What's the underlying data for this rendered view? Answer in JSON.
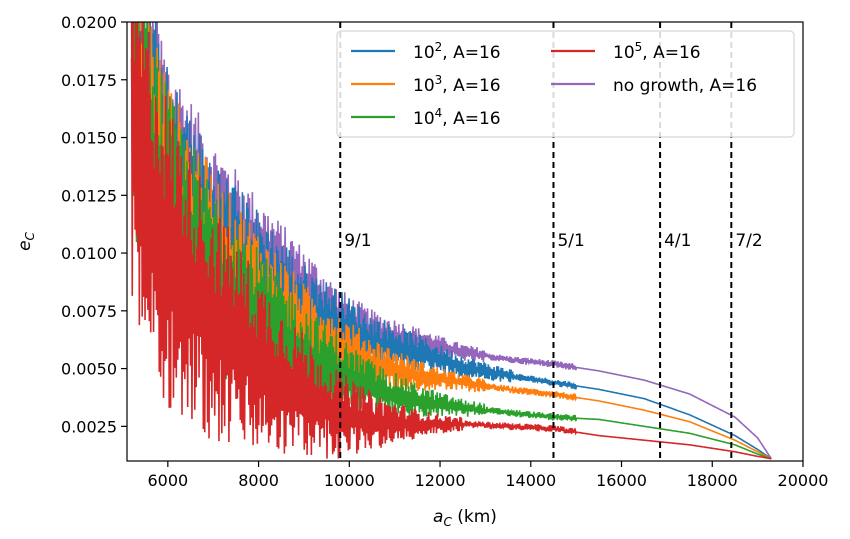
{
  "chart_data": {
    "type": "line",
    "xlabel": "a_C (km)",
    "ylabel": "e_C",
    "xlim": [
      5100,
      20000
    ],
    "ylim": [
      0.001,
      0.02
    ],
    "xticks": [
      6000,
      8000,
      10000,
      12000,
      14000,
      16000,
      18000,
      20000
    ],
    "yticks": [
      0.0025,
      0.005,
      0.0075,
      0.01,
      0.0125,
      0.015,
      0.0175,
      0.02
    ],
    "ytick_labels": [
      "0.0025",
      "0.0050",
      "0.0075",
      "0.0100",
      "0.0125",
      "0.0150",
      "0.0175",
      "0.0200"
    ],
    "grid": false,
    "legend_position": "top-right",
    "series": [
      {
        "name": "10^2, A=16",
        "label_base": "10",
        "label_exp": "2",
        "label_rest": ", A=16",
        "color": "#1f77b4",
        "x": [
          5200,
          5600,
          6000,
          7000,
          8000,
          9000,
          9800,
          10500,
          11500,
          12500,
          13500,
          14500,
          15500,
          16500,
          17500,
          18500,
          19000,
          19300
        ],
        "y": [
          0.0195,
          0.0168,
          0.0138,
          0.0108,
          0.0092,
          0.0075,
          0.0068,
          0.0061,
          0.0057,
          0.0051,
          0.0047,
          0.0044,
          0.0041,
          0.0037,
          0.003,
          0.0021,
          0.0015,
          0.0011
        ]
      },
      {
        "name": "10^3, A=16",
        "label_base": "10",
        "label_exp": "3",
        "label_rest": ", A=16",
        "color": "#ff7f0e",
        "x": [
          5200,
          5600,
          6000,
          7000,
          8000,
          9000,
          9800,
          10500,
          11500,
          12500,
          13500,
          14500,
          15500,
          16500,
          17500,
          18500,
          19000,
          19300
        ],
        "y": [
          0.0185,
          0.0158,
          0.0128,
          0.0098,
          0.0082,
          0.0066,
          0.0058,
          0.0052,
          0.0047,
          0.0044,
          0.0041,
          0.0039,
          0.0036,
          0.0032,
          0.0027,
          0.0019,
          0.0014,
          0.0011
        ]
      },
      {
        "name": "10^4, A=16",
        "label_base": "10",
        "label_exp": "4",
        "label_rest": ", A=16",
        "color": "#2ca02c",
        "x": [
          5200,
          5600,
          6000,
          7000,
          8000,
          9000,
          9800,
          10500,
          11500,
          12500,
          13500,
          14500,
          15500,
          16500,
          17500,
          18500,
          19000,
          19300
        ],
        "y": [
          0.017,
          0.0145,
          0.0118,
          0.0088,
          0.007,
          0.0055,
          0.0047,
          0.0041,
          0.0036,
          0.0033,
          0.0031,
          0.0029,
          0.0028,
          0.0025,
          0.0022,
          0.0017,
          0.0013,
          0.0011
        ]
      },
      {
        "name": "10^5, A=16",
        "label_base": "10",
        "label_exp": "5",
        "label_rest": ", A=16",
        "color": "#d62728",
        "x": [
          5200,
          5600,
          6000,
          7000,
          8000,
          9000,
          9800,
          10500,
          11500,
          12500,
          13500,
          14500,
          15500,
          16500,
          17500,
          18500,
          19000,
          19300
        ],
        "y": [
          0.015,
          0.0125,
          0.01,
          0.007,
          0.0052,
          0.0038,
          0.003,
          0.0027,
          0.0026,
          0.0026,
          0.0025,
          0.0024,
          0.0021,
          0.0019,
          0.0017,
          0.0014,
          0.0012,
          0.0011
        ]
      },
      {
        "name": "no growth, A=16",
        "label_base": "no growth, A=16",
        "label_exp": "",
        "label_rest": "",
        "color": "#9467bd",
        "x": [
          5200,
          5600,
          6000,
          7000,
          8000,
          9000,
          9800,
          10500,
          11500,
          12500,
          13500,
          14500,
          15500,
          16500,
          17500,
          18500,
          19000,
          19300
        ],
        "y": [
          0.02,
          0.0178,
          0.015,
          0.012,
          0.0102,
          0.0086,
          0.0072,
          0.0066,
          0.0062,
          0.0057,
          0.0054,
          0.0052,
          0.0049,
          0.0045,
          0.0039,
          0.0029,
          0.002,
          0.0011
        ]
      }
    ],
    "annotations": [
      {
        "x": 9800,
        "label": "9/1",
        "style": "dashed-vertical",
        "color": "#000000"
      },
      {
        "x": 14500,
        "label": "5/1",
        "style": "dashed-vertical",
        "color": "#000000"
      },
      {
        "x": 16850,
        "label": "4/1",
        "style": "dashed-vertical",
        "color": "#000000"
      },
      {
        "x": 18420,
        "label": "7/2",
        "style": "dashed-vertical",
        "color": "#000000"
      }
    ],
    "annotation_label_y": 0.0103
  }
}
